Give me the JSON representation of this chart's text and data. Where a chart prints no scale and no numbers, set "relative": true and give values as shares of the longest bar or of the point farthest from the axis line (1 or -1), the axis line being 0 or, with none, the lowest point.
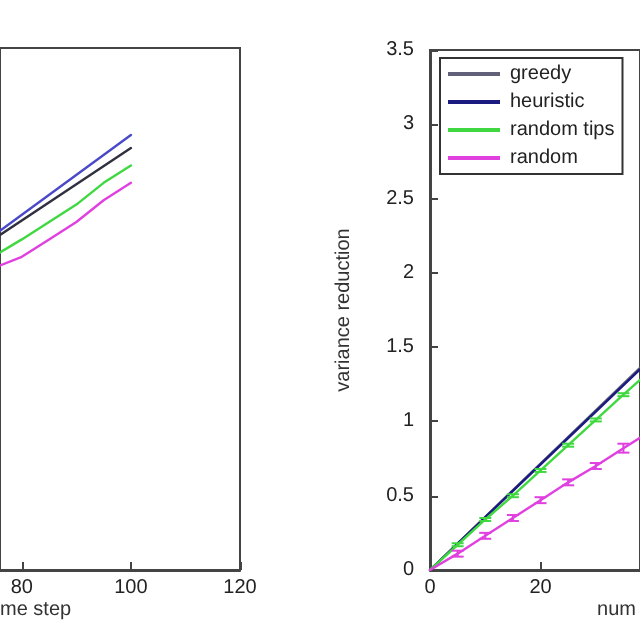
{
  "chart_data": [
    {
      "type": "line",
      "xlabel": "me step",
      "xlim": [
        76,
        120
      ],
      "xticks": [
        80,
        100,
        120
      ],
      "relative": true,
      "tick_labels": "x",
      "grid": false,
      "legend": false,
      "marker": "none",
      "line_style": "solid",
      "series": [
        {
          "color": "#4a4ac8",
          "x": [
            76,
            100
          ],
          "values": [
            0.78,
            1.0
          ]
        },
        {
          "color": "#303040",
          "x": [
            76,
            100
          ],
          "values": [
            0.77,
            0.97
          ]
        },
        {
          "color": "#40d840",
          "x": [
            76,
            80,
            85,
            90,
            95,
            100
          ],
          "values": [
            0.73,
            0.76,
            0.8,
            0.84,
            0.89,
            0.93
          ]
        },
        {
          "color": "#e040e0",
          "x": [
            76,
            80,
            85,
            90,
            95,
            100
          ],
          "values": [
            0.7,
            0.72,
            0.76,
            0.8,
            0.85,
            0.89
          ]
        }
      ]
    },
    {
      "type": "line",
      "xlabel": "num",
      "ylabel": "variance reduction",
      "xlim": [
        0,
        38
      ],
      "xticks": [
        0,
        20
      ],
      "ylim": [
        0,
        3.5
      ],
      "yticks": [
        0,
        0.5,
        1,
        1.5,
        2,
        2.5,
        3,
        3.5
      ],
      "grid": false,
      "legend": "top left",
      "marker": "none",
      "line_style": "solid",
      "series": [
        {
          "name": "greedy",
          "color": "#606078",
          "x": [
            0,
            38
          ],
          "values": [
            0,
            1.36
          ]
        },
        {
          "name": "heuristic",
          "color": "#1a1a80",
          "x": [
            0,
            38
          ],
          "values": [
            0,
            1.35
          ]
        },
        {
          "name": "random tips",
          "color": "#40d840",
          "x": [
            0,
            5,
            10,
            15,
            20,
            25,
            30,
            35,
            38
          ],
          "values": [
            0,
            0.17,
            0.34,
            0.5,
            0.67,
            0.84,
            1.01,
            1.18,
            1.28
          ],
          "errors": [
            null,
            0.01,
            0.01,
            0.01,
            0.01,
            0.01,
            0.01,
            0.01,
            null
          ]
        },
        {
          "name": "random",
          "color": "#e040e0",
          "x": [
            0,
            5,
            10,
            15,
            20,
            25,
            30,
            35,
            38
          ],
          "values": [
            0,
            0.11,
            0.23,
            0.35,
            0.47,
            0.59,
            0.7,
            0.82,
            0.89
          ],
          "errors": [
            null,
            0.02,
            0.02,
            0.02,
            0.02,
            0.02,
            0.02,
            0.03,
            null
          ]
        }
      ]
    }
  ]
}
